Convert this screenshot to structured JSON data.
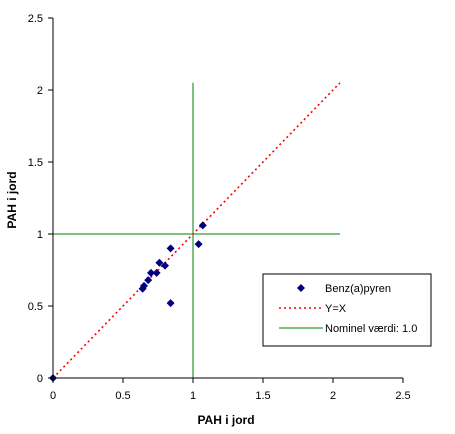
{
  "chart_data": {
    "type": "scatter",
    "xlabel": "PAH i jord",
    "ylabel": "PAH i jord",
    "xlim": [
      0,
      2.5
    ],
    "ylim": [
      0,
      2.5
    ],
    "x_ticks": [
      "0",
      "0.5",
      "1",
      "1.5",
      "2",
      "2.5"
    ],
    "y_ticks": [
      "0",
      "0.5",
      "1",
      "1.5",
      "2",
      "2.5"
    ],
    "grid": false,
    "legend_position": "right",
    "series": [
      {
        "name": "Benz(a)pyren",
        "kind": "points",
        "marker": "diamond",
        "color": "#000080",
        "points": [
          [
            0.0,
            0.0
          ],
          [
            0.64,
            0.62
          ],
          [
            0.65,
            0.64
          ],
          [
            0.68,
            0.68
          ],
          [
            0.7,
            0.73
          ],
          [
            0.74,
            0.73
          ],
          [
            0.76,
            0.8
          ],
          [
            0.8,
            0.78
          ],
          [
            0.84,
            0.9
          ],
          [
            0.84,
            0.52
          ],
          [
            1.04,
            0.93
          ],
          [
            1.07,
            1.06
          ]
        ]
      },
      {
        "name": "Y=X",
        "kind": "line",
        "style": "dotted",
        "color": "#ff0000",
        "points": [
          [
            0.0,
            0.0
          ],
          [
            2.05,
            2.05
          ]
        ]
      },
      {
        "name": "Nominel værdi:  1.0",
        "kind": "crosshair",
        "color": "#008000",
        "vertical": {
          "x": 1.0,
          "y_range": [
            0.0,
            2.05
          ]
        },
        "horizontal": {
          "y": 1.0,
          "x_range": [
            0.0,
            2.05
          ]
        }
      }
    ]
  }
}
